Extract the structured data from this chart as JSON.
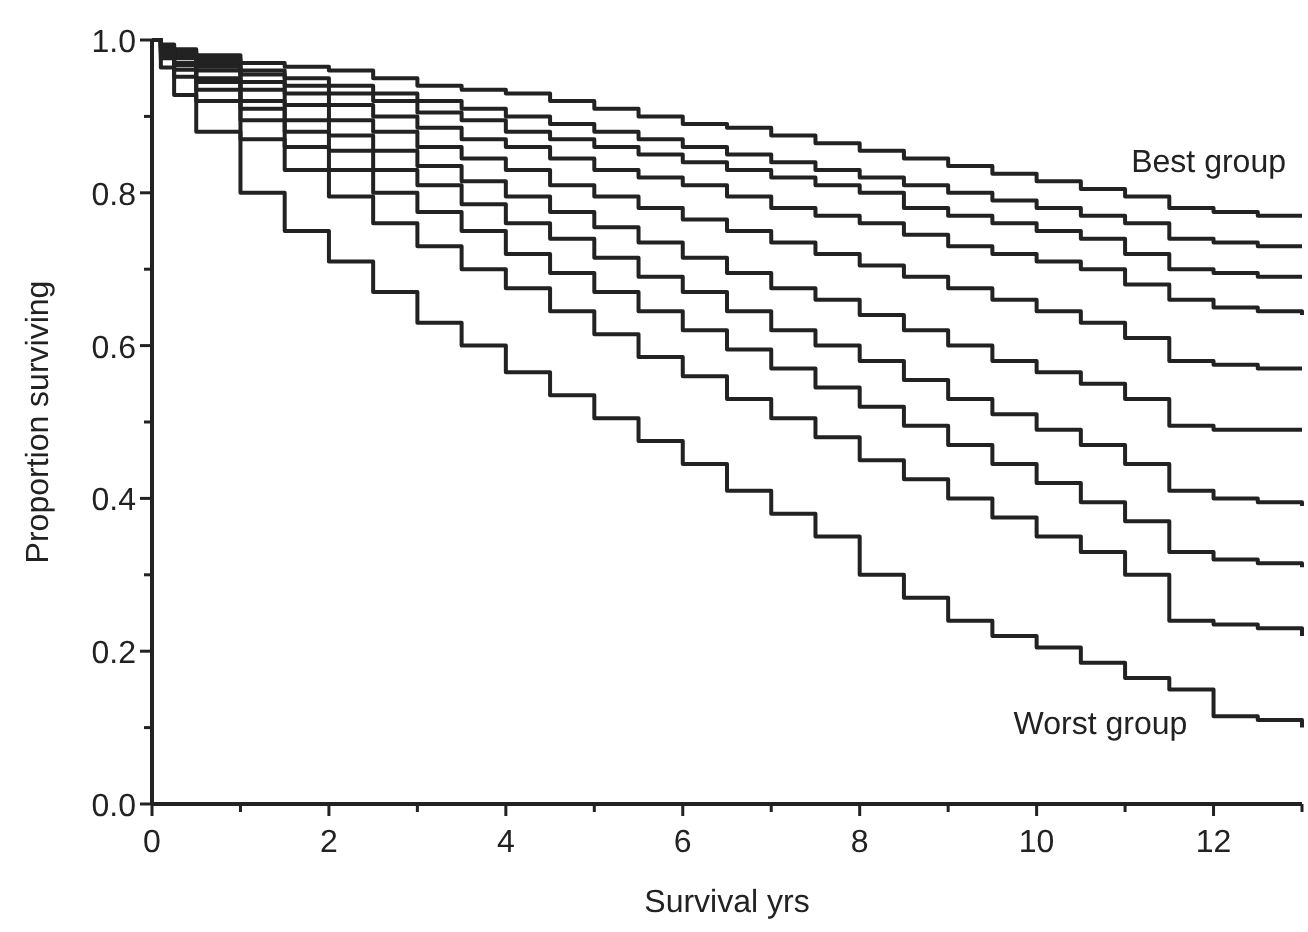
{
  "chart_data": {
    "type": "step",
    "xlabel": "Survival yrs",
    "ylabel": "Proportion surviving",
    "x": [
      0,
      0.1,
      0.25,
      0.5,
      1,
      1.5,
      2,
      2.5,
      3,
      3.5,
      4,
      4.5,
      5,
      5.5,
      6,
      6.5,
      7,
      7.5,
      8,
      8.5,
      9,
      9.5,
      10,
      10.5,
      11,
      11.5,
      12,
      12.5,
      13
    ],
    "series": [
      {
        "color": "#222222",
        "values": [
          1.0,
          0.994,
          0.988,
          0.98,
          0.97,
          0.965,
          0.96,
          0.95,
          0.94,
          0.935,
          0.93,
          0.92,
          0.91,
          0.9,
          0.89,
          0.885,
          0.875,
          0.865,
          0.855,
          0.845,
          0.835,
          0.825,
          0.815,
          0.805,
          0.795,
          0.78,
          0.775,
          0.77,
          0.77
        ]
      },
      {
        "color": "#222222",
        "values": [
          1.0,
          0.993,
          0.985,
          0.975,
          0.96,
          0.95,
          0.94,
          0.93,
          0.92,
          0.91,
          0.9,
          0.89,
          0.88,
          0.87,
          0.86,
          0.85,
          0.84,
          0.83,
          0.82,
          0.81,
          0.8,
          0.79,
          0.78,
          0.77,
          0.76,
          0.74,
          0.735,
          0.73,
          0.73
        ]
      },
      {
        "color": "#222222",
        "values": [
          1.0,
          0.991,
          0.982,
          0.97,
          0.955,
          0.94,
          0.93,
          0.92,
          0.905,
          0.895,
          0.88,
          0.87,
          0.86,
          0.85,
          0.84,
          0.83,
          0.82,
          0.81,
          0.8,
          0.78,
          0.77,
          0.76,
          0.75,
          0.74,
          0.72,
          0.7,
          0.695,
          0.69,
          0.69
        ]
      },
      {
        "color": "#222222",
        "values": [
          1.0,
          0.99,
          0.979,
          0.965,
          0.945,
          0.93,
          0.915,
          0.9,
          0.885,
          0.87,
          0.86,
          0.845,
          0.83,
          0.82,
          0.81,
          0.795,
          0.78,
          0.77,
          0.76,
          0.745,
          0.73,
          0.72,
          0.71,
          0.7,
          0.68,
          0.66,
          0.65,
          0.645,
          0.64
        ]
      },
      {
        "color": "#222222",
        "values": [
          1.0,
          0.988,
          0.976,
          0.96,
          0.935,
          0.915,
          0.895,
          0.88,
          0.86,
          0.845,
          0.83,
          0.81,
          0.795,
          0.78,
          0.765,
          0.75,
          0.735,
          0.72,
          0.705,
          0.69,
          0.675,
          0.66,
          0.645,
          0.63,
          0.61,
          0.58,
          0.575,
          0.57,
          0.57
        ]
      },
      {
        "color": "#222222",
        "values": [
          1.0,
          0.985,
          0.97,
          0.95,
          0.92,
          0.895,
          0.875,
          0.855,
          0.835,
          0.815,
          0.795,
          0.775,
          0.755,
          0.735,
          0.715,
          0.695,
          0.675,
          0.66,
          0.64,
          0.62,
          0.6,
          0.58,
          0.565,
          0.55,
          0.53,
          0.495,
          0.49,
          0.49,
          0.49
        ]
      },
      {
        "color": "#222222",
        "values": [
          1.0,
          0.984,
          0.967,
          0.945,
          0.91,
          0.88,
          0.855,
          0.83,
          0.81,
          0.785,
          0.76,
          0.74,
          0.715,
          0.69,
          0.67,
          0.645,
          0.62,
          0.6,
          0.58,
          0.555,
          0.53,
          0.51,
          0.49,
          0.47,
          0.445,
          0.41,
          0.4,
          0.395,
          0.39
        ]
      },
      {
        "color": "#222222",
        "values": [
          1.0,
          0.98,
          0.961,
          0.935,
          0.895,
          0.86,
          0.83,
          0.8,
          0.775,
          0.75,
          0.72,
          0.695,
          0.67,
          0.645,
          0.62,
          0.595,
          0.57,
          0.545,
          0.52,
          0.495,
          0.47,
          0.445,
          0.42,
          0.395,
          0.37,
          0.33,
          0.32,
          0.315,
          0.31
        ]
      },
      {
        "color": "#222222",
        "values": [
          1.0,
          0.976,
          0.952,
          0.92,
          0.87,
          0.83,
          0.795,
          0.76,
          0.73,
          0.7,
          0.675,
          0.645,
          0.615,
          0.585,
          0.56,
          0.53,
          0.505,
          0.48,
          0.45,
          0.425,
          0.4,
          0.375,
          0.35,
          0.33,
          0.3,
          0.24,
          0.235,
          0.23,
          0.22
        ]
      },
      {
        "color": "#222222",
        "values": [
          1.0,
          0.964,
          0.928,
          0.88,
          0.8,
          0.75,
          0.71,
          0.67,
          0.63,
          0.6,
          0.565,
          0.535,
          0.505,
          0.475,
          0.445,
          0.41,
          0.38,
          0.35,
          0.3,
          0.27,
          0.24,
          0.22,
          0.205,
          0.185,
          0.165,
          0.15,
          0.115,
          0.11,
          0.1
        ]
      }
    ],
    "xlim": [
      0,
      13
    ],
    "xticks": [
      0,
      {
        "value": 1,
        "label": null
      },
      2,
      {
        "value": 3,
        "label": null
      },
      4,
      {
        "value": 5,
        "label": null
      },
      6,
      {
        "value": 7,
        "label": null
      },
      8,
      {
        "value": 9,
        "label": null
      },
      10,
      {
        "value": 11,
        "label": null
      },
      12,
      {
        "value": 13,
        "label": null
      }
    ],
    "ylim": [
      0,
      1
    ],
    "yticks": [
      "0.0",
      {
        "value": 0.1,
        "label": null
      },
      {
        "value": 0.2,
        "label": "0.2"
      },
      {
        "value": 0.3,
        "label": null
      },
      {
        "value": 0.4,
        "label": "0.4"
      },
      {
        "value": 0.5,
        "label": null
      },
      {
        "value": 0.6,
        "label": "0.6"
      },
      {
        "value": 0.7,
        "label": null
      },
      {
        "value": 0.8,
        "label": "0.8"
      },
      {
        "value": 0.9,
        "label": null
      },
      {
        "value": 1,
        "label": "1.0"
      }
    ],
    "annotations": [
      "Best group",
      "Worst group"
    ],
    "grid": false,
    "marker": "none",
    "line_style": "solid"
  }
}
